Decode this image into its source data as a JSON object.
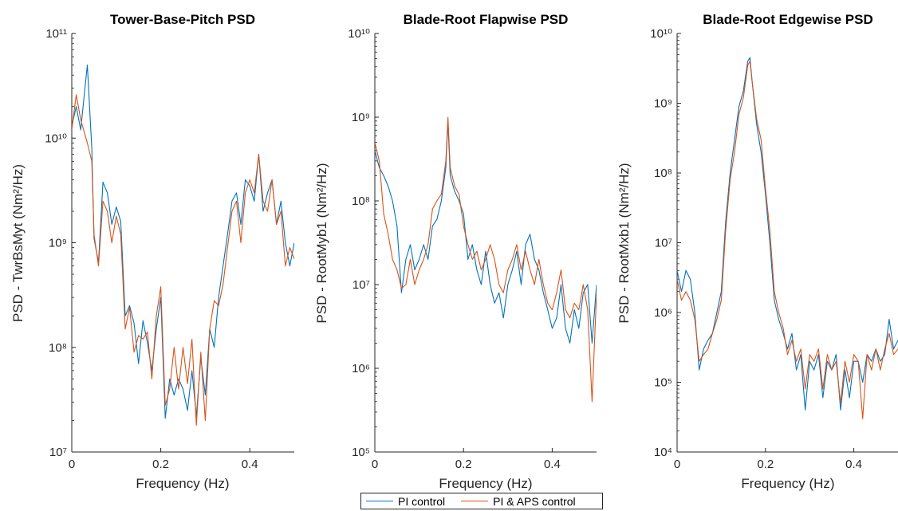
{
  "legend": {
    "items": [
      {
        "label": "PI control",
        "color": "#0072BD"
      },
      {
        "label": "PI & APS control",
        "color": "#D95319"
      }
    ]
  },
  "chart_data": [
    {
      "type": "line",
      "title": "Tower-Base-Pitch PSD",
      "xlabel": "Frequency (Hz)",
      "ylabel": "PSD - TwrBsMyt (Nm²/Hz)",
      "yscale": "log",
      "xlim": [
        0,
        0.5
      ],
      "ylim_exponents": [
        7,
        11
      ],
      "xticks": [
        0,
        0.2,
        0.4
      ],
      "xtick_labels": [
        "0",
        "0.2",
        "0.4"
      ],
      "ytick_exponents": [
        7,
        8,
        9,
        10,
        11
      ],
      "series": [
        {
          "name": "PI control",
          "x": [
            0,
            0.01,
            0.02,
            0.035,
            0.045,
            0.05,
            0.06,
            0.07,
            0.08,
            0.09,
            0.1,
            0.11,
            0.12,
            0.13,
            0.14,
            0.15,
            0.16,
            0.17,
            0.18,
            0.19,
            0.2,
            0.21,
            0.22,
            0.23,
            0.24,
            0.25,
            0.26,
            0.27,
            0.28,
            0.29,
            0.3,
            0.31,
            0.32,
            0.33,
            0.34,
            0.35,
            0.36,
            0.37,
            0.38,
            0.39,
            0.4,
            0.41,
            0.42,
            0.43,
            0.44,
            0.45,
            0.46,
            0.47,
            0.48,
            0.49,
            0.5
          ],
          "y": [
            13000000000.0,
            20000000000.0,
            12000000000.0,
            50000000000.0,
            8000000000.0,
            1100000000.0,
            650000000.0,
            3800000000.0,
            3000000000.0,
            1500000000.0,
            2200000000.0,
            1600000000.0,
            200000000.0,
            250000000.0,
            170000000.0,
            70000000.0,
            180000000.0,
            110000000.0,
            60000000.0,
            150000000.0,
            300000000.0,
            21000000.0,
            50000000.0,
            35000000.0,
            50000000.0,
            40000000.0,
            25000000.0,
            60000000.0,
            22000000.0,
            80000000.0,
            35000000.0,
            150000000.0,
            100000000.0,
            300000000.0,
            600000000.0,
            1200000000.0,
            2500000000.0,
            3000000000.0,
            1500000000.0,
            4000000000.0,
            3500000000.0,
            2500000000.0,
            7000000000.0,
            2000000000.0,
            3000000000.0,
            4000000000.0,
            1500000000.0,
            2500000000.0,
            1000000000.0,
            600000000.0,
            1000000000.0
          ]
        },
        {
          "name": "PI & APS control",
          "x": [
            0,
            0.01,
            0.02,
            0.035,
            0.045,
            0.05,
            0.06,
            0.07,
            0.08,
            0.09,
            0.1,
            0.11,
            0.12,
            0.13,
            0.14,
            0.15,
            0.16,
            0.17,
            0.18,
            0.19,
            0.2,
            0.21,
            0.22,
            0.23,
            0.24,
            0.25,
            0.26,
            0.27,
            0.28,
            0.29,
            0.3,
            0.31,
            0.32,
            0.33,
            0.34,
            0.35,
            0.36,
            0.37,
            0.38,
            0.39,
            0.4,
            0.41,
            0.42,
            0.43,
            0.44,
            0.45,
            0.46,
            0.47,
            0.48,
            0.49,
            0.5
          ],
          "y": [
            12000000000.0,
            26000000000.0,
            15000000000.0,
            9000000000.0,
            6000000000.0,
            1200000000.0,
            600000000.0,
            2500000000.0,
            2000000000.0,
            1000000000.0,
            1800000000.0,
            1200000000.0,
            150000000.0,
            240000000.0,
            90000000.0,
            130000000.0,
            120000000.0,
            140000000.0,
            50000000.0,
            200000000.0,
            380000000.0,
            28000000.0,
            40000000.0,
            100000000.0,
            40000000.0,
            100000000.0,
            45000000.0,
            120000000.0,
            18000000.0,
            90000000.0,
            20000000.0,
            150000000.0,
            280000000.0,
            250000000.0,
            400000000.0,
            900000000.0,
            2000000000.0,
            2500000000.0,
            1000000000.0,
            3000000000.0,
            4000000000.0,
            3000000000.0,
            7000000000.0,
            2500000000.0,
            2000000000.0,
            4000000000.0,
            1500000000.0,
            2000000000.0,
            600000000.0,
            900000000.0,
            700000000.0
          ]
        }
      ]
    },
    {
      "type": "line",
      "title": "Blade-Root Flapwise PSD",
      "xlabel": "Frequency (Hz)",
      "ylabel": "PSD - RootMyb1 (Nm²/Hz)",
      "yscale": "log",
      "xlim": [
        0,
        0.5
      ],
      "ylim_exponents": [
        5,
        10
      ],
      "xticks": [
        0,
        0.2,
        0.4
      ],
      "xtick_labels": [
        "0",
        "0.2",
        "0.4"
      ],
      "ytick_exponents": [
        5,
        6,
        7,
        8,
        9,
        10
      ],
      "series": [
        {
          "name": "PI control",
          "x": [
            0,
            0.01,
            0.02,
            0.03,
            0.04,
            0.05,
            0.06,
            0.07,
            0.08,
            0.09,
            0.1,
            0.11,
            0.12,
            0.13,
            0.14,
            0.15,
            0.16,
            0.165,
            0.17,
            0.18,
            0.19,
            0.2,
            0.21,
            0.22,
            0.23,
            0.24,
            0.25,
            0.26,
            0.27,
            0.28,
            0.29,
            0.3,
            0.31,
            0.32,
            0.33,
            0.34,
            0.35,
            0.36,
            0.37,
            0.38,
            0.39,
            0.4,
            0.41,
            0.42,
            0.43,
            0.44,
            0.45,
            0.46,
            0.47,
            0.48,
            0.49,
            0.5
          ],
          "y": [
            400000000.0,
            250000000.0,
            200000000.0,
            150000000.0,
            100000000.0,
            50000000.0,
            8000000.0,
            20000000.0,
            30000000.0,
            15000000.0,
            20000000.0,
            30000000.0,
            20000000.0,
            50000000.0,
            60000000.0,
            100000000.0,
            250000000.0,
            900000000.0,
            200000000.0,
            130000000.0,
            100000000.0,
            70000000.0,
            20000000.0,
            30000000.0,
            15000000.0,
            10000000.0,
            25000000.0,
            10000000.0,
            6000000.0,
            8000000.0,
            4000000.0,
            10000000.0,
            15000000.0,
            25000000.0,
            10000000.0,
            30000000.0,
            40000000.0,
            20000000.0,
            15000000.0,
            8000000.0,
            5000000.0,
            3000000.0,
            4000000.0,
            10000000.0,
            3000000.0,
            2000000.0,
            5000000.0,
            3000000.0,
            8000000.0,
            10000000.0,
            2000000.0,
            10000000.0
          ]
        },
        {
          "name": "PI & APS control",
          "x": [
            0,
            0.01,
            0.02,
            0.03,
            0.04,
            0.05,
            0.06,
            0.07,
            0.08,
            0.09,
            0.1,
            0.11,
            0.12,
            0.13,
            0.14,
            0.15,
            0.16,
            0.165,
            0.17,
            0.18,
            0.19,
            0.2,
            0.21,
            0.22,
            0.23,
            0.24,
            0.25,
            0.26,
            0.27,
            0.28,
            0.29,
            0.3,
            0.31,
            0.32,
            0.33,
            0.34,
            0.35,
            0.36,
            0.37,
            0.38,
            0.39,
            0.4,
            0.41,
            0.42,
            0.43,
            0.44,
            0.45,
            0.46,
            0.47,
            0.48,
            0.49,
            0.5
          ],
          "y": [
            500000000.0,
            300000000.0,
            70000000.0,
            40000000.0,
            20000000.0,
            15000000.0,
            9000000.0,
            10000000.0,
            20000000.0,
            10000000.0,
            15000000.0,
            20000000.0,
            30000000.0,
            80000000.0,
            100000000.0,
            120000000.0,
            300000000.0,
            1000000000.0,
            250000000.0,
            150000000.0,
            120000000.0,
            50000000.0,
            30000000.0,
            20000000.0,
            25000000.0,
            15000000.0,
            20000000.0,
            30000000.0,
            20000000.0,
            10000000.0,
            8000000.0,
            15000000.0,
            20000000.0,
            30000000.0,
            15000000.0,
            25000000.0,
            15000000.0,
            10000000.0,
            20000000.0,
            10000000.0,
            6000000.0,
            5000000.0,
            8000000.0,
            15000000.0,
            5000000.0,
            4000000.0,
            6000000.0,
            5000000.0,
            10000000.0,
            5000000.0,
            400000.0,
            8000000.0
          ]
        }
      ]
    },
    {
      "type": "line",
      "title": "Blade-Root Edgewise PSD",
      "xlabel": "Frequency (Hz)",
      "ylabel": "PSD - RootMxb1 (Nm²/Hz)",
      "yscale": "log",
      "xlim": [
        0,
        0.5
      ],
      "ylim_exponents": [
        4,
        10
      ],
      "xticks": [
        0,
        0.2,
        0.4
      ],
      "xtick_labels": [
        "0",
        "0.2",
        "0.4"
      ],
      "ytick_exponents": [
        4,
        5,
        6,
        7,
        8,
        9,
        10
      ],
      "series": [
        {
          "name": "PI control",
          "x": [
            0,
            0.01,
            0.02,
            0.03,
            0.04,
            0.05,
            0.06,
            0.07,
            0.08,
            0.09,
            0.1,
            0.11,
            0.12,
            0.13,
            0.14,
            0.15,
            0.16,
            0.165,
            0.17,
            0.18,
            0.19,
            0.2,
            0.21,
            0.22,
            0.23,
            0.24,
            0.25,
            0.26,
            0.27,
            0.28,
            0.29,
            0.3,
            0.31,
            0.32,
            0.33,
            0.34,
            0.35,
            0.36,
            0.37,
            0.38,
            0.39,
            0.4,
            0.41,
            0.42,
            0.43,
            0.44,
            0.45,
            0.46,
            0.47,
            0.48,
            0.49,
            0.5
          ],
          "y": [
            4000000.0,
            2000000.0,
            4000000.0,
            3000000.0,
            1000000.0,
            150000.0,
            300000.0,
            400000.0,
            500000.0,
            1000000.0,
            2000000.0,
            20000000.0,
            100000000.0,
            300000000.0,
            900000000.0,
            1500000000.0,
            4000000000.0,
            4500000000.0,
            2000000000.0,
            500000000.0,
            200000000.0,
            50000000.0,
            10000000.0,
            1500000.0,
            800000.0,
            500000.0,
            300000.0,
            500000.0,
            150000.0,
            250000.0,
            40000.0,
            200000.0,
            150000.0,
            250000.0,
            60000.0,
            200000.0,
            150000.0,
            250000.0,
            40000.0,
            150000.0,
            60000.0,
            200000.0,
            200000.0,
            100000.0,
            250000.0,
            200000.0,
            300000.0,
            200000.0,
            250000.0,
            800000.0,
            300000.0,
            400000.0
          ]
        },
        {
          "name": "PI & APS control",
          "x": [
            0,
            0.01,
            0.02,
            0.03,
            0.04,
            0.05,
            0.06,
            0.07,
            0.08,
            0.09,
            0.1,
            0.11,
            0.12,
            0.13,
            0.14,
            0.15,
            0.16,
            0.165,
            0.17,
            0.18,
            0.19,
            0.2,
            0.21,
            0.22,
            0.23,
            0.24,
            0.25,
            0.26,
            0.27,
            0.28,
            0.29,
            0.3,
            0.31,
            0.32,
            0.33,
            0.34,
            0.35,
            0.36,
            0.37,
            0.38,
            0.39,
            0.4,
            0.41,
            0.42,
            0.43,
            0.44,
            0.45,
            0.46,
            0.47,
            0.48,
            0.49,
            0.5
          ],
          "y": [
            3000000.0,
            1500000.0,
            2000000.0,
            1500000.0,
            800000.0,
            200000.0,
            250000.0,
            300000.0,
            500000.0,
            800000.0,
            1500000.0,
            15000000.0,
            80000000.0,
            200000000.0,
            700000000.0,
            1200000000.0,
            3500000000.0,
            4000000000.0,
            2000000000.0,
            600000000.0,
            300000000.0,
            60000000.0,
            15000000.0,
            2000000.0,
            1000000.0,
            600000.0,
            250000.0,
            400000.0,
            200000.0,
            300000.0,
            80000.0,
            250000.0,
            200000.0,
            300000.0,
            80000.0,
            250000.0,
            150000.0,
            200000.0,
            50000.0,
            200000.0,
            100000.0,
            250000.0,
            200000.0,
            30000.0,
            250000.0,
            150000.0,
            300000.0,
            150000.0,
            300000.0,
            500000.0,
            250000.0,
            300000.0
          ]
        }
      ]
    }
  ]
}
